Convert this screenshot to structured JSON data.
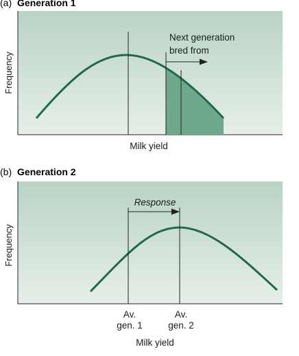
{
  "panel_a": {
    "letter": "(a)",
    "title": "Generation 1",
    "y_label": "Frequency",
    "x_label": "Milk yield",
    "annotation_line1": "Next generation",
    "annotation_line2": "bred from"
  },
  "panel_b": {
    "letter": "(b)",
    "title": "Generation 2",
    "y_label": "Frequency",
    "x_label": "Milk yield",
    "response_label": "Response",
    "mean1_line1": "Av.",
    "mean1_line2": "gen. 1",
    "mean2_line1": "Av.",
    "mean2_line2": "gen. 2"
  },
  "colors": {
    "panel_top": "#b9d3c5",
    "panel_bottom": "#e6efe9",
    "curve": "#1f6a4a",
    "shade": "#6fa88a"
  }
}
